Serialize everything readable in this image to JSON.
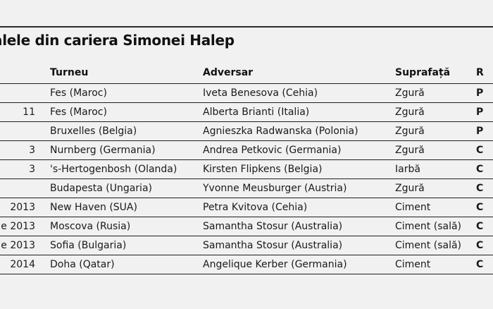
{
  "title": "alele din cariera Simonei Halep",
  "columns": [
    "Turneu",
    "Adversar",
    "Suprafață",
    "R"
  ],
  "rows": [
    {
      "date": "",
      "tournament": "Fes (Maroc)",
      "opponent": "Iveta Benesova (Cehia)",
      "surface": "Zgură",
      "result": "P"
    },
    {
      "date": "11",
      "tournament": "Fes (Maroc)",
      "opponent": "Alberta Brianti (Italia)",
      "surface": "Zgură",
      "result": "P"
    },
    {
      "date": "",
      "tournament": "Bruxelles (Belgia)",
      "opponent": "Agnieszka Radwanska (Polonia)",
      "surface": "Zgură",
      "result": "P"
    },
    {
      "date": "3",
      "tournament": "Nurnberg (Germania)",
      "opponent": "Andrea Petkovic (Germania)",
      "surface": "Zgură",
      "result": "C"
    },
    {
      "date": "3",
      "tournament": "'s-Hertogenbosh (Olanda)",
      "opponent": "Kirsten Flipkens (Belgia)",
      "surface": "Iarbă",
      "result": "C"
    },
    {
      "date": "",
      "tournament": "Budapesta (Ungaria)",
      "opponent": "Yvonne Meusburger (Austria)",
      "surface": "Zgură",
      "result": "C"
    },
    {
      "date": "2013",
      "tournament": "New Haven (SUA)",
      "opponent": "Petra Kvitova (Cehia)",
      "surface": "Ciment",
      "result": "C"
    },
    {
      "date": "e 2013",
      "tournament": "Moscova (Rusia)",
      "opponent": "Samantha Stosur (Australia)",
      "surface": "Ciment (sală)",
      "result": "C"
    },
    {
      "date": "e 2013",
      "tournament": "Sofia (Bulgaria)",
      "opponent": "Samantha Stosur (Australia)",
      "surface": "Ciment (sală)",
      "result": "C"
    },
    {
      "date": "2014",
      "tournament": "Doha (Qatar)",
      "opponent": "Angelique Kerber (Germania)",
      "surface": "Ciment",
      "result": "C"
    }
  ]
}
